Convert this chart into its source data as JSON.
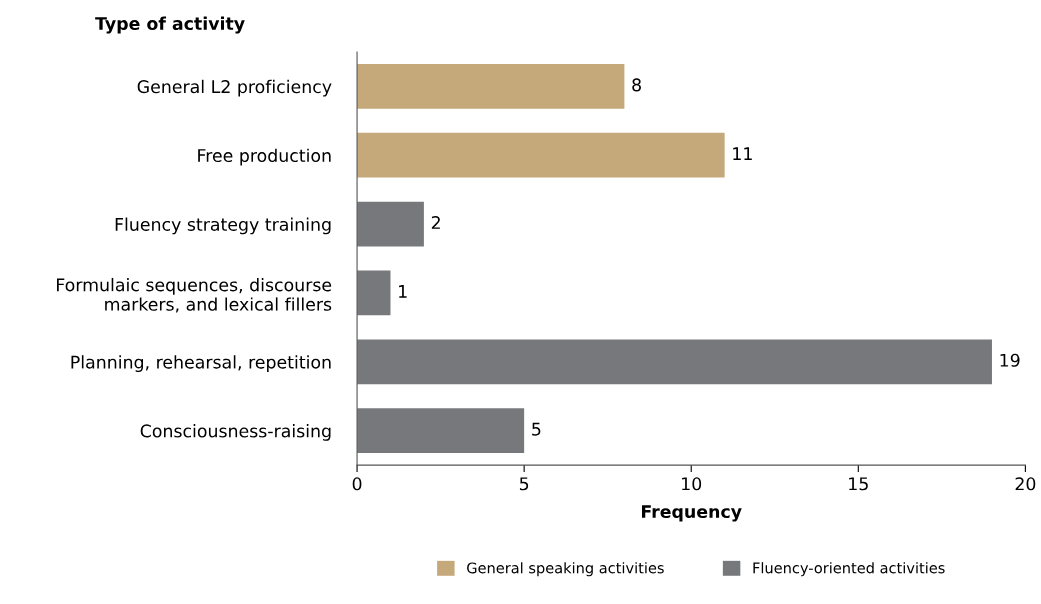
{
  "chart_data": {
    "type": "bar",
    "orientation": "horizontal",
    "ylabel": "Type of activity",
    "xlabel": "Frequency",
    "categories": [
      "General L2 proficiency",
      "Free production",
      "Fluency strategy training",
      "Formulaic sequences, discourse\nmarkers, and lexical fillers",
      "Planning, rehearsal, repetition",
      "Consciousness-raising"
    ],
    "series": [
      {
        "name": "General speaking activities",
        "color": "#c5a97a",
        "values": [
          8,
          11,
          null,
          null,
          null,
          null
        ]
      },
      {
        "name": "Fluency-oriented activities",
        "color": "#77787b",
        "values": [
          null,
          null,
          2,
          1,
          19,
          5
        ]
      }
    ],
    "xlim": [
      0,
      20
    ],
    "xticks": [
      0,
      5,
      10,
      15,
      20
    ],
    "data_labels": true,
    "grid": false,
    "legend": "bottom"
  }
}
